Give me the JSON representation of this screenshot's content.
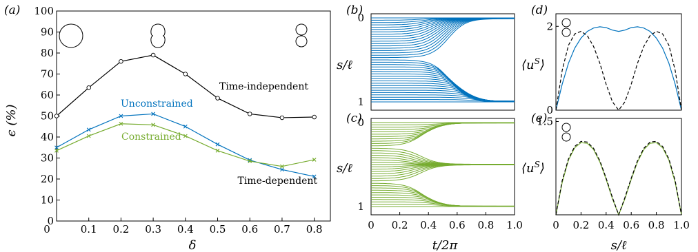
{
  "colors": {
    "black": "#000000",
    "blue": "#0072bd",
    "green": "#77ac30",
    "dashed": "#000000"
  },
  "chart_data": [
    {
      "id": "a",
      "type": "line",
      "panel_label": "(a)",
      "xlabel": "δ",
      "ylabel": "ϵ (%)",
      "xlim": [
        0,
        0.85
      ],
      "ylim": [
        0,
        100
      ],
      "x_ticks": [
        "0",
        "0.1",
        "0.2",
        "0.3",
        "0.4",
        "0.5",
        "0.6",
        "0.7",
        "0.8"
      ],
      "y_ticks": [
        "0",
        "10",
        "20",
        "30",
        "40",
        "50",
        "60",
        "70",
        "80",
        "90",
        "100"
      ],
      "x": [
        0,
        0.1,
        0.2,
        0.3,
        0.4,
        0.5,
        0.6,
        0.7,
        0.8
      ],
      "series": [
        {
          "name": "Time-independent",
          "color": "#000000",
          "marker": "circle",
          "values": [
            50,
            63.5,
            76,
            79,
            70,
            58.5,
            51,
            49.2,
            49.5
          ]
        },
        {
          "name": "Unconstrained",
          "color": "#0072bd",
          "marker": "cross",
          "values": [
            35,
            43.5,
            50,
            51,
            45,
            36.5,
            29,
            24.5,
            21.2
          ]
        },
        {
          "name": "Constrained",
          "color": "#77ac30",
          "marker": "cross",
          "values": [
            33.5,
            40.5,
            46.3,
            45.8,
            40.5,
            33.5,
            28.5,
            26,
            29.2
          ]
        }
      ],
      "annotations": [
        "Time-independent",
        "Unconstrained",
        "Constrained",
        "Time-dependent"
      ],
      "insets": [
        "circle",
        "peanut",
        "double-circle"
      ]
    },
    {
      "id": "b",
      "type": "line",
      "panel_label": "(b)",
      "ylabel": "s/ℓ",
      "xlim": [
        0,
        1
      ],
      "ylim": [
        0,
        1
      ],
      "y_reversed": true,
      "y_ticks": [
        "0",
        "1"
      ],
      "color": "#0072bd",
      "description": "family of streamline trajectories s(t) for unconstrained case"
    },
    {
      "id": "c",
      "type": "line",
      "panel_label": "(c)",
      "xlabel": "t/2π",
      "ylabel": "s/ℓ",
      "xlim": [
        0,
        1
      ],
      "ylim": [
        0,
        1
      ],
      "y_reversed": true,
      "x_ticks": [
        "0",
        "0.2",
        "0.4",
        "0.6",
        "0.8",
        "1.0"
      ],
      "y_ticks": [
        "0",
        "1"
      ],
      "color": "#77ac30"
    },
    {
      "id": "d",
      "type": "line",
      "panel_label": "(d)",
      "ylabel": "⟨u^S⟩",
      "xlim": [
        0,
        1
      ],
      "ylim": [
        0,
        2.3
      ],
      "y_ticks": [
        "0",
        "2"
      ],
      "series": [
        {
          "color": "#0072bd",
          "style": "solid",
          "x": [
            0,
            0.05,
            0.1,
            0.15,
            0.2,
            0.25,
            0.3,
            0.35,
            0.4,
            0.45,
            0.5,
            0.55,
            0.6,
            0.65,
            0.7,
            0.75,
            0.8,
            0.85,
            0.9,
            0.95,
            1.0
          ],
          "values": [
            0,
            0.62,
            1.12,
            1.48,
            1.72,
            1.88,
            1.96,
            1.99,
            1.97,
            1.91,
            1.88,
            1.91,
            1.97,
            1.99,
            1.96,
            1.88,
            1.72,
            1.48,
            1.12,
            0.62,
            0
          ]
        },
        {
          "color": "#000000",
          "style": "dashed",
          "x": [
            0,
            0.05,
            0.1,
            0.15,
            0.2,
            0.25,
            0.3,
            0.35,
            0.4,
            0.45,
            0.5,
            0.55,
            0.6,
            0.65,
            0.7,
            0.75,
            0.8,
            0.85,
            0.9,
            0.95,
            1.0
          ],
          "values": [
            0,
            0.95,
            1.55,
            1.82,
            1.88,
            1.78,
            1.52,
            1.12,
            0.62,
            0.2,
            0,
            0.2,
            0.62,
            1.12,
            1.52,
            1.78,
            1.88,
            1.82,
            1.55,
            0.95,
            0
          ]
        }
      ]
    },
    {
      "id": "e",
      "type": "line",
      "panel_label": "(e)",
      "xlabel": "s/ℓ",
      "ylabel": "⟨u^S⟩",
      "xlim": [
        0,
        1
      ],
      "ylim": [
        0,
        1.55
      ],
      "x_ticks": [
        "0",
        "0.2",
        "0.4",
        "0.6",
        "0.8",
        "1.0"
      ],
      "y_ticks": [
        "1.5"
      ],
      "series": [
        {
          "color": "#77ac30",
          "style": "solid",
          "x": [
            0,
            0.05,
            0.1,
            0.15,
            0.2,
            0.25,
            0.3,
            0.35,
            0.4,
            0.45,
            0.5,
            0.55,
            0.6,
            0.65,
            0.7,
            0.75,
            0.8,
            0.85,
            0.9,
            0.95,
            1.0
          ],
          "values": [
            0,
            0.52,
            0.88,
            1.08,
            1.16,
            1.15,
            1.05,
            0.85,
            0.57,
            0.26,
            0,
            0.26,
            0.57,
            0.85,
            1.05,
            1.15,
            1.16,
            1.08,
            0.88,
            0.52,
            0
          ]
        },
        {
          "color": "#000000",
          "style": "dashed",
          "x": [
            0,
            0.05,
            0.1,
            0.15,
            0.2,
            0.25,
            0.3,
            0.35,
            0.4,
            0.45,
            0.5,
            0.55,
            0.6,
            0.65,
            0.7,
            0.75,
            0.8,
            0.85,
            0.9,
            0.95,
            1.0
          ],
          "values": [
            0,
            0.55,
            0.9,
            1.1,
            1.18,
            1.17,
            1.07,
            0.87,
            0.59,
            0.28,
            0,
            0.28,
            0.59,
            0.87,
            1.07,
            1.17,
            1.18,
            1.1,
            0.9,
            0.55,
            0
          ]
        }
      ]
    }
  ]
}
